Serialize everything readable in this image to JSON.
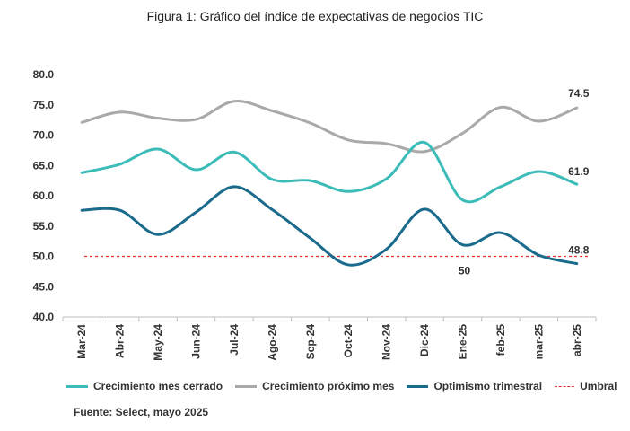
{
  "figure": {
    "title": "Figura 1: Gráfico del índice de expectativas de negocios TIC",
    "source": "Fuente: Select, mayo 2025"
  },
  "chart_data": {
    "type": "line",
    "categories": [
      "Mar-24",
      "Abr-24",
      "May-24",
      "Jun-24",
      "Jul-24",
      "Ago-24",
      "Sep-24",
      "Oct-24",
      "Nov-24",
      "Dic-24",
      "Ene-25",
      "feb-25",
      "mar-25",
      "abr-25"
    ],
    "ylim": [
      40,
      80
    ],
    "yticks": [
      "40.0",
      "45.0",
      "50.0",
      "55.0",
      "60.0",
      "65.0",
      "70.0",
      "75.0",
      "80.0"
    ],
    "grid": false,
    "legend_position": "bottom",
    "series": [
      {
        "name": "Crecimiento mes cerrado",
        "color": "#3bbcb8",
        "values": [
          63.8,
          65.2,
          67.7,
          64.3,
          67.2,
          62.7,
          62.5,
          60.7,
          62.8,
          68.8,
          59.3,
          61.5,
          64.0,
          61.9
        ],
        "end_label": "61.9"
      },
      {
        "name": "Crecimiento próximo mes",
        "color": "#a9a9a9",
        "values": [
          72.1,
          73.8,
          72.8,
          72.6,
          75.6,
          74.0,
          72.0,
          69.2,
          68.6,
          67.3,
          70.3,
          74.6,
          72.3,
          74.5
        ],
        "end_label": "74.5"
      },
      {
        "name": "Optimismo trimestral",
        "color": "#1a6a8c",
        "values": [
          57.6,
          57.6,
          53.6,
          57.3,
          61.5,
          57.7,
          53.0,
          48.6,
          51.2,
          57.8,
          51.9,
          53.9,
          50.2,
          48.8
        ],
        "end_label": "48.8"
      },
      {
        "name": "Umbral",
        "color": "#e03030",
        "dashed": true,
        "values": [
          50,
          50,
          50,
          50,
          50,
          50,
          50,
          50,
          50,
          50,
          50,
          50,
          50,
          50
        ],
        "annotation": "50"
      }
    ]
  }
}
